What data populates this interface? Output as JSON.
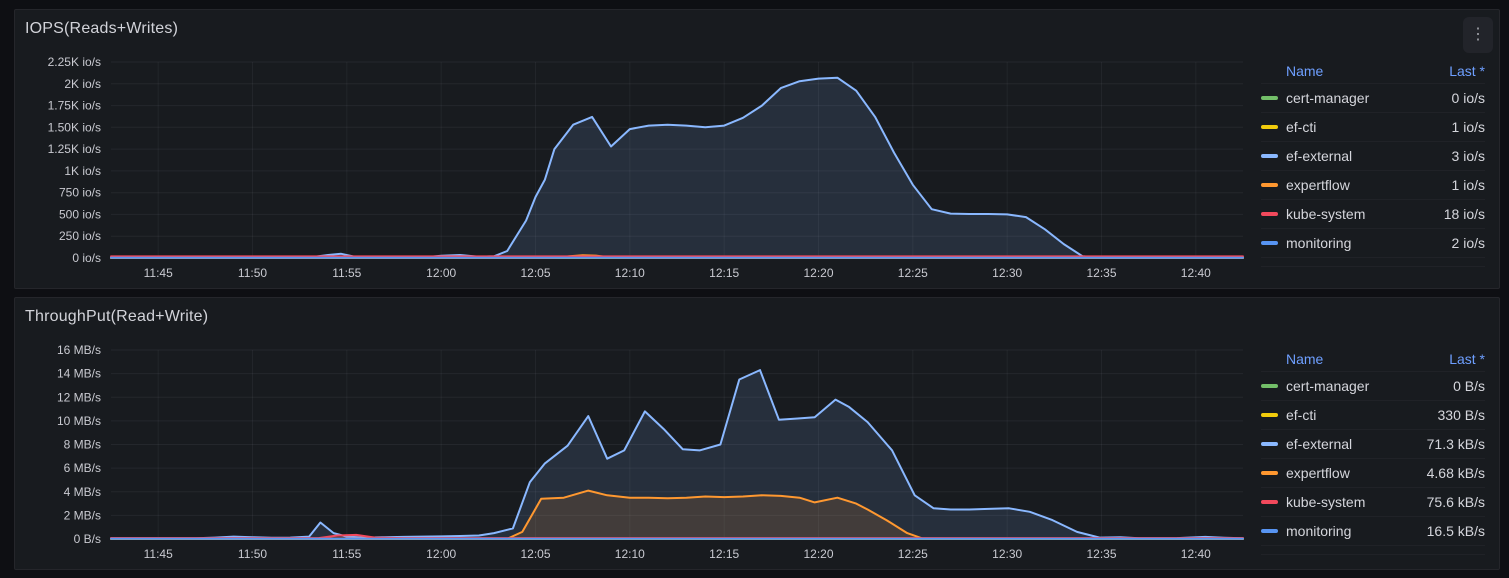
{
  "colors": {
    "legend_link": "#6e9fff",
    "series": {
      "cert-manager": "#73BF69",
      "ef-cti": "#F2CC0C",
      "ef-external": "#8AB8FF",
      "expertflow": "#FF9830",
      "kube-system": "#F2495C",
      "monitoring": "#5794F2"
    }
  },
  "panels": [
    {
      "title": "IOPS(Reads+Writes)",
      "menu_icon": "kebab-menu",
      "legend": {
        "columns": [
          "Name",
          "Last *"
        ],
        "rows": [
          {
            "name": "cert-manager",
            "color": "#73BF69",
            "last": "0 io/s"
          },
          {
            "name": "ef-cti",
            "color": "#F2CC0C",
            "last": "1 io/s"
          },
          {
            "name": "ef-external",
            "color": "#8AB8FF",
            "last": "3 io/s"
          },
          {
            "name": "expertflow",
            "color": "#FF9830",
            "last": "1 io/s"
          },
          {
            "name": "kube-system",
            "color": "#F2495C",
            "last": "18 io/s"
          },
          {
            "name": "monitoring",
            "color": "#5794F2",
            "last": "2 io/s"
          }
        ]
      },
      "chart_data": {
        "type": "area",
        "unit": "io/s",
        "x_domain": [
          42.5,
          102.5
        ],
        "y_domain": [
          0,
          2250
        ],
        "x_ticks": [
          {
            "v": 45,
            "label": "11:45"
          },
          {
            "v": 50,
            "label": "11:50"
          },
          {
            "v": 55,
            "label": "11:55"
          },
          {
            "v": 60,
            "label": "12:00"
          },
          {
            "v": 65,
            "label": "12:05"
          },
          {
            "v": 70,
            "label": "12:10"
          },
          {
            "v": 75,
            "label": "12:15"
          },
          {
            "v": 80,
            "label": "12:20"
          },
          {
            "v": 85,
            "label": "12:25"
          },
          {
            "v": 90,
            "label": "12:30"
          },
          {
            "v": 95,
            "label": "12:35"
          },
          {
            "v": 100,
            "label": "12:40"
          }
        ],
        "y_ticks": [
          {
            "v": 0,
            "label": "0 io/s"
          },
          {
            "v": 250,
            "label": "250 io/s"
          },
          {
            "v": 500,
            "label": "500 io/s"
          },
          {
            "v": 750,
            "label": "750 io/s"
          },
          {
            "v": 1000,
            "label": "1K io/s"
          },
          {
            "v": 1250,
            "label": "1.25K io/s"
          },
          {
            "v": 1500,
            "label": "1.50K io/s"
          },
          {
            "v": 1750,
            "label": "1.75K io/s"
          },
          {
            "v": 2000,
            "label": "2K io/s"
          },
          {
            "v": 2250,
            "label": "2.25K io/s"
          }
        ],
        "series": [
          {
            "name": "cert-manager",
            "color": "#73BF69",
            "points": [
              [
                42.5,
                0
              ],
              [
                102.5,
                0
              ]
            ]
          },
          {
            "name": "ef-cti",
            "color": "#F2CC0C",
            "points": [
              [
                42.5,
                1
              ],
              [
                102.5,
                1
              ]
            ]
          },
          {
            "name": "ef-external",
            "color": "#8AB8FF",
            "points": [
              [
                42.5,
                2
              ],
              [
                52,
                2
              ],
              [
                53,
                6
              ],
              [
                54,
                35
              ],
              [
                54.7,
                48
              ],
              [
                55.5,
                10
              ],
              [
                57,
                4
              ],
              [
                59,
                6
              ],
              [
                60,
                25
              ],
              [
                61,
                35
              ],
              [
                62,
                15
              ],
              [
                62.8,
                20
              ],
              [
                63.5,
                80
              ],
              [
                64.5,
                430
              ],
              [
                65,
                700
              ],
              [
                65.5,
                900
              ],
              [
                66,
                1250
              ],
              [
                67,
                1530
              ],
              [
                68,
                1620
              ],
              [
                69,
                1280
              ],
              [
                70,
                1480
              ],
              [
                71,
                1520
              ],
              [
                72,
                1530
              ],
              [
                73,
                1520
              ],
              [
                74,
                1500
              ],
              [
                75,
                1520
              ],
              [
                76,
                1610
              ],
              [
                77,
                1750
              ],
              [
                78,
                1950
              ],
              [
                79,
                2030
              ],
              [
                80,
                2060
              ],
              [
                81,
                2070
              ],
              [
                82,
                1920
              ],
              [
                83,
                1620
              ],
              [
                84,
                1210
              ],
              [
                85,
                840
              ],
              [
                86,
                560
              ],
              [
                87,
                510
              ],
              [
                88,
                505
              ],
              [
                89,
                505
              ],
              [
                90,
                500
              ],
              [
                91,
                470
              ],
              [
                92,
                330
              ],
              [
                93,
                160
              ],
              [
                94,
                20
              ],
              [
                95,
                3
              ],
              [
                102.5,
                3
              ]
            ]
          },
          {
            "name": "expertflow",
            "color": "#FF9830",
            "points": [
              [
                42.5,
                1
              ],
              [
                66,
                1
              ],
              [
                66.8,
                20
              ],
              [
                67.5,
                32
              ],
              [
                68.2,
                28
              ],
              [
                69,
                6
              ],
              [
                70,
                1
              ],
              [
                102.5,
                1
              ]
            ]
          },
          {
            "name": "kube-system",
            "color": "#F2495C",
            "points": [
              [
                42.5,
                18
              ],
              [
                102.5,
                18
              ]
            ]
          },
          {
            "name": "monitoring",
            "color": "#5794F2",
            "points": [
              [
                42.5,
                2
              ],
              [
                102.5,
                2
              ]
            ]
          }
        ]
      }
    },
    {
      "title": "ThroughPut(Read+Write)",
      "legend": {
        "columns": [
          "Name",
          "Last *"
        ],
        "rows": [
          {
            "name": "cert-manager",
            "color": "#73BF69",
            "last": "0 B/s"
          },
          {
            "name": "ef-cti",
            "color": "#F2CC0C",
            "last": "330 B/s"
          },
          {
            "name": "ef-external",
            "color": "#8AB8FF",
            "last": "71.3 kB/s"
          },
          {
            "name": "expertflow",
            "color": "#FF9830",
            "last": "4.68 kB/s"
          },
          {
            "name": "kube-system",
            "color": "#F2495C",
            "last": "75.6 kB/s"
          },
          {
            "name": "monitoring",
            "color": "#5794F2",
            "last": "16.5 kB/s"
          }
        ]
      },
      "chart_data": {
        "type": "area",
        "unit": "MB/s",
        "x_domain": [
          42.5,
          102.5
        ],
        "y_domain": [
          0,
          16
        ],
        "x_ticks": [
          {
            "v": 45,
            "label": "11:45"
          },
          {
            "v": 50,
            "label": "11:50"
          },
          {
            "v": 55,
            "label": "11:55"
          },
          {
            "v": 60,
            "label": "12:00"
          },
          {
            "v": 65,
            "label": "12:05"
          },
          {
            "v": 70,
            "label": "12:10"
          },
          {
            "v": 75,
            "label": "12:15"
          },
          {
            "v": 80,
            "label": "12:20"
          },
          {
            "v": 85,
            "label": "12:25"
          },
          {
            "v": 90,
            "label": "12:30"
          },
          {
            "v": 95,
            "label": "12:35"
          },
          {
            "v": 100,
            "label": "12:40"
          }
        ],
        "y_ticks": [
          {
            "v": 0,
            "label": "0 B/s"
          },
          {
            "v": 2,
            "label": "2 MB/s"
          },
          {
            "v": 4,
            "label": "4 MB/s"
          },
          {
            "v": 6,
            "label": "6 MB/s"
          },
          {
            "v": 8,
            "label": "8 MB/s"
          },
          {
            "v": 10,
            "label": "10 MB/s"
          },
          {
            "v": 12,
            "label": "12 MB/s"
          },
          {
            "v": 14,
            "label": "14 MB/s"
          },
          {
            "v": 16,
            "label": "16 MB/s"
          }
        ],
        "series": [
          {
            "name": "cert-manager",
            "color": "#73BF69",
            "points": [
              [
                42.5,
                0
              ],
              [
                102.5,
                0
              ]
            ]
          },
          {
            "name": "ef-cti",
            "color": "#F2CC0C",
            "points": [
              [
                42.5,
                0.01
              ],
              [
                102.5,
                0.01
              ]
            ]
          },
          {
            "name": "ef-external",
            "color": "#8AB8FF",
            "points": [
              [
                42.5,
                0.06
              ],
              [
                47,
                0.06
              ],
              [
                48,
                0.12
              ],
              [
                49,
                0.2
              ],
              [
                50,
                0.15
              ],
              [
                51,
                0.1
              ],
              [
                52,
                0.12
              ],
              [
                53,
                0.2
              ],
              [
                53.6,
                1.4
              ],
              [
                54.3,
                0.5
              ],
              [
                55,
                0.2
              ],
              [
                56,
                0.12
              ],
              [
                57,
                0.15
              ],
              [
                58,
                0.18
              ],
              [
                59,
                0.2
              ],
              [
                60,
                0.22
              ],
              [
                61,
                0.25
              ],
              [
                62,
                0.3
              ],
              [
                62.8,
                0.5
              ],
              [
                63.8,
                0.9
              ],
              [
                64.7,
                4.8
              ],
              [
                65.5,
                6.4
              ],
              [
                66.7,
                7.9
              ],
              [
                67.8,
                10.4
              ],
              [
                68.8,
                6.8
              ],
              [
                69.7,
                7.5
              ],
              [
                70.8,
                10.8
              ],
              [
                71.8,
                9.3
              ],
              [
                72.8,
                7.6
              ],
              [
                73.7,
                7.5
              ],
              [
                74.8,
                8.0
              ],
              [
                75.8,
                13.5
              ],
              [
                76.9,
                14.3
              ],
              [
                77.9,
                10.1
              ],
              [
                78.9,
                10.2
              ],
              [
                79.8,
                10.3
              ],
              [
                80.9,
                11.8
              ],
              [
                81.6,
                11.2
              ],
              [
                82.6,
                9.9
              ],
              [
                83.9,
                7.5
              ],
              [
                85.1,
                3.7
              ],
              [
                86.1,
                2.6
              ],
              [
                87,
                2.5
              ],
              [
                88,
                2.5
              ],
              [
                89,
                2.55
              ],
              [
                90.1,
                2.6
              ],
              [
                91.2,
                2.3
              ],
              [
                92.4,
                1.6
              ],
              [
                93.7,
                0.6
              ],
              [
                94.9,
                0.12
              ],
              [
                96,
                0.15
              ],
              [
                97,
                0.06
              ],
              [
                99,
                0.08
              ],
              [
                100.5,
                0.18
              ],
              [
                101.5,
                0.1
              ],
              [
                102.5,
                0.06
              ]
            ]
          },
          {
            "name": "expertflow",
            "color": "#FF9830",
            "points": [
              [
                42.5,
                0.02
              ],
              [
                63.5,
                0.02
              ],
              [
                64.3,
                0.6
              ],
              [
                65.3,
                3.4
              ],
              [
                66.5,
                3.5
              ],
              [
                67.8,
                4.1
              ],
              [
                68.8,
                3.7
              ],
              [
                70,
                3.5
              ],
              [
                71,
                3.5
              ],
              [
                72,
                3.45
              ],
              [
                73,
                3.5
              ],
              [
                74,
                3.6
              ],
              [
                75,
                3.55
              ],
              [
                76,
                3.6
              ],
              [
                77,
                3.7
              ],
              [
                78,
                3.65
              ],
              [
                79,
                3.5
              ],
              [
                79.8,
                3.1
              ],
              [
                81,
                3.5
              ],
              [
                82,
                3.0
              ],
              [
                82.6,
                2.5
              ],
              [
                83.6,
                1.6
              ],
              [
                84.7,
                0.5
              ],
              [
                85.5,
                0.05
              ],
              [
                102.5,
                0.02
              ]
            ]
          },
          {
            "name": "kube-system",
            "color": "#F2495C",
            "points": [
              [
                42.5,
                0.08
              ],
              [
                53.5,
                0.08
              ],
              [
                54.5,
                0.3
              ],
              [
                55.5,
                0.35
              ],
              [
                56.5,
                0.12
              ],
              [
                58,
                0.08
              ],
              [
                102.5,
                0.08
              ]
            ]
          },
          {
            "name": "monitoring",
            "color": "#5794F2",
            "points": [
              [
                42.5,
                0.02
              ],
              [
                102.5,
                0.02
              ]
            ]
          }
        ]
      }
    }
  ]
}
